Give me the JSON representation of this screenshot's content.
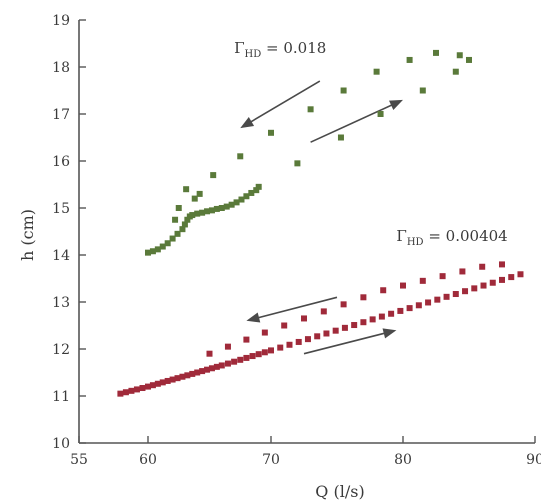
{
  "chart_data": {
    "type": "scatter",
    "title": "",
    "xlabel": "Q (l/s)",
    "ylabel": "h (cm)",
    "xlim": [
      55,
      90
    ],
    "ylim": [
      10,
      19
    ],
    "xticks": [
      "55",
      "60",
      "70",
      "80",
      "90"
    ],
    "xtick_values": [
      55,
      60,
      70,
      80,
      90
    ],
    "yticks": [
      "10",
      "11",
      "12",
      "13",
      "14",
      "15",
      "16",
      "17",
      "18",
      "19"
    ],
    "ytick_values": [
      10,
      11,
      12,
      13,
      14,
      15,
      16,
      17,
      18,
      19
    ],
    "grid": false,
    "legend": "none",
    "annotations": [
      {
        "text": "Γ_HD = 0.018",
        "x": 67,
        "y": 18.3
      },
      {
        "text": "Γ_HD = 0.00404",
        "x": 79.5,
        "y": 14.3
      }
    ],
    "arrows": [
      {
        "from": [
          73.7,
          17.7
        ],
        "to": [
          67.5,
          16.7
        ]
      },
      {
        "from": [
          73.0,
          16.4
        ],
        "to": [
          80.0,
          17.3
        ]
      },
      {
        "from": [
          75.0,
          13.1
        ],
        "to": [
          68.0,
          12.6
        ]
      },
      {
        "from": [
          72.5,
          11.9
        ],
        "to": [
          79.5,
          12.4
        ]
      }
    ],
    "series": [
      {
        "color": "#5a7a3a",
        "x": [
          60.0,
          60.4,
          60.8,
          61.2,
          61.6,
          62.0,
          62.4,
          62.8,
          63.0,
          63.2,
          63.4,
          63.6,
          64.0,
          64.4,
          64.8,
          65.2,
          65.6,
          66.0,
          66.4,
          66.8,
          67.2,
          67.6,
          68.0,
          68.4,
          68.8,
          69.0,
          62.2,
          62.5,
          63.1,
          63.8,
          64.2,
          65.3,
          67.5,
          70.0,
          72.0,
          73.0,
          75.5,
          75.3,
          78.0,
          78.3,
          80.5,
          81.5,
          82.5,
          84.0,
          84.3,
          85.0
        ],
        "y": [
          14.05,
          14.08,
          14.12,
          14.18,
          14.25,
          14.35,
          14.45,
          14.55,
          14.65,
          14.75,
          14.82,
          14.85,
          14.88,
          14.9,
          14.93,
          14.95,
          14.98,
          15.0,
          15.03,
          15.07,
          15.12,
          15.18,
          15.25,
          15.32,
          15.38,
          15.45,
          14.75,
          15.0,
          15.4,
          15.2,
          15.3,
          15.7,
          16.1,
          16.6,
          15.95,
          17.1,
          17.5,
          16.5,
          17.9,
          17.0,
          18.15,
          17.5,
          18.3,
          17.9,
          18.25,
          18.15
        ]
      },
      {
        "color": "#a02a3a",
        "x": [
          58.0,
          58.4,
          58.8,
          59.2,
          59.6,
          60.0,
          60.4,
          60.8,
          61.2,
          61.6,
          62.0,
          62.4,
          62.8,
          63.2,
          63.6,
          64.0,
          64.4,
          64.8,
          65.2,
          65.6,
          66.0,
          66.5,
          67.0,
          67.5,
          68.0,
          68.5,
          69.0,
          69.5,
          70.0,
          70.7,
          71.4,
          72.1,
          72.8,
          73.5,
          74.2,
          74.9,
          75.6,
          76.3,
          77.0,
          77.7,
          78.4,
          79.1,
          79.8,
          80.5,
          81.2,
          81.9,
          82.6,
          83.3,
          84.0,
          84.7,
          85.4,
          86.1,
          86.8,
          87.5,
          88.2,
          88.9,
          65.0,
          66.5,
          68.0,
          69.5,
          71.0,
          72.5,
          74.0,
          75.5,
          77.0,
          78.5,
          80.0,
          81.5,
          83.0,
          84.5,
          86.0,
          87.5
        ],
        "y": [
          11.05,
          11.08,
          11.11,
          11.14,
          11.17,
          11.2,
          11.23,
          11.26,
          11.29,
          11.32,
          11.35,
          11.38,
          11.41,
          11.44,
          11.47,
          11.5,
          11.53,
          11.56,
          11.59,
          11.62,
          11.65,
          11.69,
          11.73,
          11.77,
          11.81,
          11.85,
          11.89,
          11.93,
          11.97,
          12.03,
          12.09,
          12.15,
          12.21,
          12.27,
          12.33,
          12.39,
          12.45,
          12.51,
          12.57,
          12.63,
          12.69,
          12.75,
          12.81,
          12.87,
          12.93,
          12.99,
          13.05,
          13.11,
          13.17,
          13.23,
          13.29,
          13.35,
          13.41,
          13.47,
          13.53,
          13.59,
          11.9,
          12.05,
          12.2,
          12.35,
          12.5,
          12.65,
          12.8,
          12.95,
          13.1,
          13.25,
          13.35,
          13.45,
          13.55,
          13.65,
          13.75,
          13.8
        ]
      }
    ]
  }
}
